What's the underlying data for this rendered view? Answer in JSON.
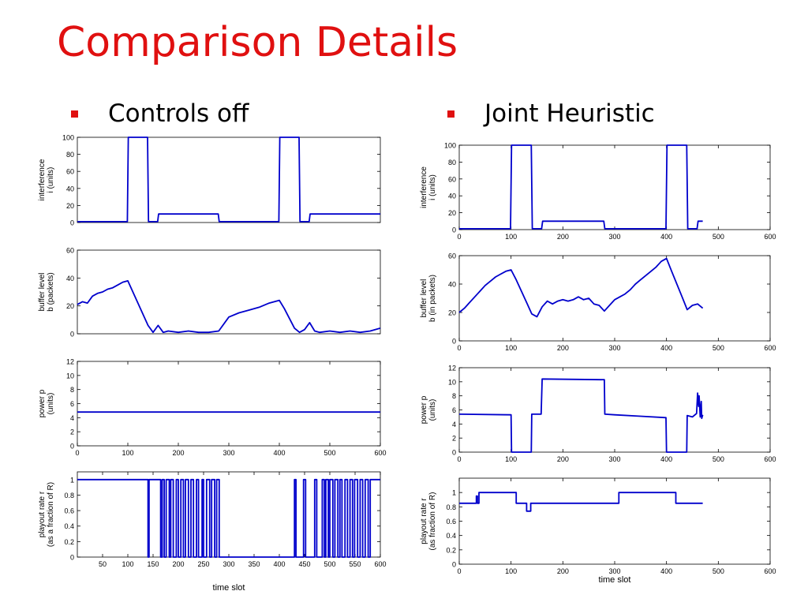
{
  "slide": {
    "title": "Comparison Details",
    "bullets": [
      "Controls off",
      "Joint Heuristic"
    ]
  },
  "colors": {
    "title": "#e01010",
    "bullet": "#e01010",
    "line": "#0000cc"
  },
  "chart_data": [
    {
      "type": "line",
      "panel": "left-1",
      "ylabel": [
        "interference",
        "i (units)"
      ],
      "xlabel": "",
      "xlim": [
        0,
        600
      ],
      "ylim": [
        0,
        100
      ],
      "yticks": [
        0,
        20,
        40,
        60,
        80,
        100
      ],
      "xticks": [],
      "series": [
        {
          "x": [
            0,
            99,
            101,
            139,
            141,
            159,
            161,
            279,
            281,
            399,
            401,
            439,
            441,
            459,
            461,
            600
          ],
          "y": [
            1,
            1,
            100,
            100,
            1,
            1,
            10,
            10,
            1,
            1,
            100,
            100,
            1,
            1,
            10,
            10
          ]
        }
      ]
    },
    {
      "type": "line",
      "panel": "left-2",
      "ylabel": [
        "buffer level",
        "b (packets)"
      ],
      "xlabel": "",
      "xlim": [
        0,
        600
      ],
      "ylim": [
        0,
        60
      ],
      "yticks": [
        0,
        20,
        40,
        60
      ],
      "xticks": [],
      "series": [
        {
          "x": [
            0,
            10,
            20,
            30,
            40,
            50,
            60,
            70,
            80,
            90,
            100,
            110,
            120,
            130,
            140,
            150,
            160,
            170,
            180,
            200,
            220,
            240,
            260,
            280,
            300,
            320,
            340,
            360,
            380,
            400,
            410,
            420,
            430,
            440,
            450,
            460,
            470,
            480,
            500,
            520,
            540,
            560,
            580,
            600
          ],
          "y": [
            21,
            23,
            22,
            27,
            29,
            30,
            32,
            33,
            35,
            37,
            38,
            30,
            22,
            14,
            6,
            1,
            6,
            1,
            2,
            1,
            2,
            1,
            1,
            2,
            12,
            15,
            17,
            19,
            22,
            24,
            18,
            11,
            4,
            1,
            3,
            8,
            2,
            1,
            2,
            1,
            2,
            1,
            2,
            4
          ]
        }
      ]
    },
    {
      "type": "line",
      "panel": "left-3",
      "ylabel": [
        "power p",
        "(units)"
      ],
      "xlabel": "",
      "xlim": [
        0,
        600
      ],
      "ylim": [
        0,
        12
      ],
      "yticks": [
        0,
        2,
        4,
        6,
        8,
        10,
        12
      ],
      "xticks": [
        0,
        100,
        200,
        300,
        400,
        500,
        600
      ],
      "series": [
        {
          "x": [
            0,
            600
          ],
          "y": [
            4.8,
            4.8
          ]
        }
      ]
    },
    {
      "type": "line",
      "panel": "left-4",
      "ylabel": [
        "playout rate r",
        "(as a fraction of R)"
      ],
      "xlabel": "time slot",
      "xlim": [
        0,
        600
      ],
      "ylim": [
        0,
        1.1
      ],
      "yticks": [
        0,
        0.2,
        0.4,
        0.6,
        0.8,
        1
      ],
      "xticks": [
        50,
        100,
        150,
        200,
        250,
        300,
        350,
        400,
        450,
        500,
        550,
        600
      ],
      "series": [
        {
          "x": [
            0,
            140,
            140,
            142,
            142,
            165,
            165,
            168,
            168,
            172,
            172,
            176,
            176,
            182,
            182,
            185,
            185,
            190,
            190,
            196,
            196,
            200,
            200,
            205,
            205,
            210,
            210,
            214,
            214,
            220,
            220,
            225,
            225,
            230,
            230,
            236,
            236,
            240,
            240,
            247,
            247,
            250,
            250,
            256,
            256,
            262,
            262,
            266,
            266,
            272,
            272,
            276,
            276,
            281,
            281,
            430,
            430,
            433,
            433,
            448,
            448,
            452,
            452,
            470,
            470,
            474,
            474,
            485,
            485,
            489,
            489,
            492,
            492,
            497,
            497,
            500,
            500,
            506,
            506,
            510,
            510,
            516,
            516,
            520,
            520,
            524,
            524,
            530,
            530,
            535,
            535,
            540,
            540,
            545,
            545,
            549,
            549,
            555,
            555,
            560,
            560,
            565,
            565,
            570,
            570,
            576,
            576,
            580,
            580,
            600
          ],
          "y": [
            1,
            1,
            0,
            0,
            1,
            1,
            0,
            0,
            1,
            1,
            0,
            0,
            1,
            1,
            0,
            0,
            1,
            1,
            0,
            0,
            1,
            1,
            0,
            0,
            1,
            1,
            0,
            0,
            1,
            1,
            0,
            0,
            1,
            1,
            0,
            0,
            1,
            1,
            0,
            0,
            1,
            1,
            0,
            0,
            1,
            1,
            0,
            0,
            1,
            1,
            0,
            0,
            1,
            1,
            0,
            0,
            1,
            1,
            0,
            0,
            1,
            1,
            0,
            0,
            1,
            1,
            0,
            0,
            1,
            1,
            0,
            0,
            1,
            1,
            0,
            0,
            1,
            1,
            0,
            0,
            1,
            1,
            0,
            0,
            1,
            1,
            0,
            0,
            1,
            1,
            0,
            0,
            1,
            1,
            0,
            0,
            1,
            1,
            0,
            0,
            1,
            1,
            0,
            0,
            1,
            1,
            0,
            0,
            1,
            1
          ]
        }
      ]
    },
    {
      "type": "line",
      "panel": "right-1",
      "ylabel": [
        "interference",
        "i (units)"
      ],
      "xlabel": "",
      "xlim": [
        0,
        600
      ],
      "ylim": [
        0,
        100
      ],
      "yticks": [
        0,
        20,
        40,
        60,
        80,
        100
      ],
      "xticks": [
        0,
        100,
        200,
        300,
        400,
        500,
        600
      ],
      "series": [
        {
          "x": [
            0,
            99,
            101,
            139,
            141,
            159,
            161,
            279,
            281,
            399,
            401,
            439,
            441,
            459,
            461,
            470
          ],
          "y": [
            1,
            1,
            100,
            100,
            1,
            1,
            10,
            10,
            1,
            1,
            100,
            100,
            1,
            1,
            10,
            10
          ]
        }
      ]
    },
    {
      "type": "line",
      "panel": "right-2",
      "ylabel": [
        "buffer level",
        "b (in packets)"
      ],
      "xlabel": "",
      "xlim": [
        0,
        600
      ],
      "ylim": [
        0,
        60
      ],
      "yticks": [
        0,
        20,
        40,
        60
      ],
      "xticks": [
        0,
        100,
        200,
        300,
        400,
        500,
        600
      ],
      "series": [
        {
          "x": [
            0,
            10,
            20,
            30,
            40,
            50,
            60,
            70,
            80,
            90,
            100,
            110,
            120,
            130,
            140,
            150,
            160,
            170,
            180,
            190,
            200,
            210,
            220,
            230,
            240,
            250,
            260,
            270,
            280,
            290,
            300,
            310,
            320,
            330,
            340,
            350,
            360,
            370,
            380,
            390,
            400,
            410,
            420,
            430,
            440,
            450,
            460,
            470
          ],
          "y": [
            20,
            23,
            27,
            31,
            35,
            39,
            42,
            45,
            47,
            49,
            50,
            43,
            35,
            27,
            19,
            17,
            24,
            28,
            26,
            28,
            29,
            28,
            29,
            31,
            29,
            30,
            26,
            25,
            21,
            25,
            29,
            31,
            33,
            36,
            40,
            43,
            46,
            49,
            52,
            56,
            58,
            49,
            40,
            31,
            22,
            25,
            26,
            23
          ]
        }
      ]
    },
    {
      "type": "line",
      "panel": "right-3",
      "ylabel": [
        "power p",
        "(units)"
      ],
      "xlabel": "",
      "xlim": [
        0,
        600
      ],
      "ylim": [
        0,
        12
      ],
      "yticks": [
        0,
        2,
        4,
        6,
        8,
        10,
        12
      ],
      "xticks": [
        0,
        100,
        200,
        300,
        400,
        500,
        600
      ],
      "series": [
        {
          "x": [
            0,
            100,
            101,
            139,
            140,
            158,
            160,
            280,
            281,
            300,
            350,
            399,
            400,
            439,
            440,
            450,
            458,
            460,
            462,
            463,
            465,
            467,
            468,
            470
          ],
          "y": [
            5.4,
            5.3,
            0,
            0,
            5.4,
            5.4,
            10.4,
            10.3,
            5.4,
            5.3,
            5.1,
            4.9,
            0,
            0,
            5.2,
            5.0,
            5.5,
            8.4,
            6.5,
            8.0,
            5.0,
            7.2,
            4.8,
            5.3
          ]
        }
      ]
    },
    {
      "type": "line",
      "panel": "right-4",
      "ylabel": [
        "playout rate r",
        "(as fraction of R)"
      ],
      "xlabel": "time slot",
      "xlim": [
        0,
        600
      ],
      "ylim": [
        0,
        1.2
      ],
      "yticks": [
        0,
        0.2,
        0.4,
        0.6,
        0.8,
        1
      ],
      "xticks": [
        0,
        100,
        200,
        300,
        400,
        500,
        600
      ],
      "series": [
        {
          "x": [
            0,
            33,
            33,
            35,
            35,
            38,
            38,
            40,
            40,
            110,
            110,
            130,
            130,
            138,
            138,
            308,
            308,
            418,
            418,
            470
          ],
          "y": [
            0.85,
            0.85,
            0.95,
            0.95,
            0.85,
            0.85,
            1.0,
            1.0,
            1.0,
            1.0,
            0.85,
            0.85,
            0.74,
            0.74,
            0.85,
            0.85,
            1.0,
            1.0,
            0.85,
            0.85
          ]
        }
      ]
    }
  ]
}
